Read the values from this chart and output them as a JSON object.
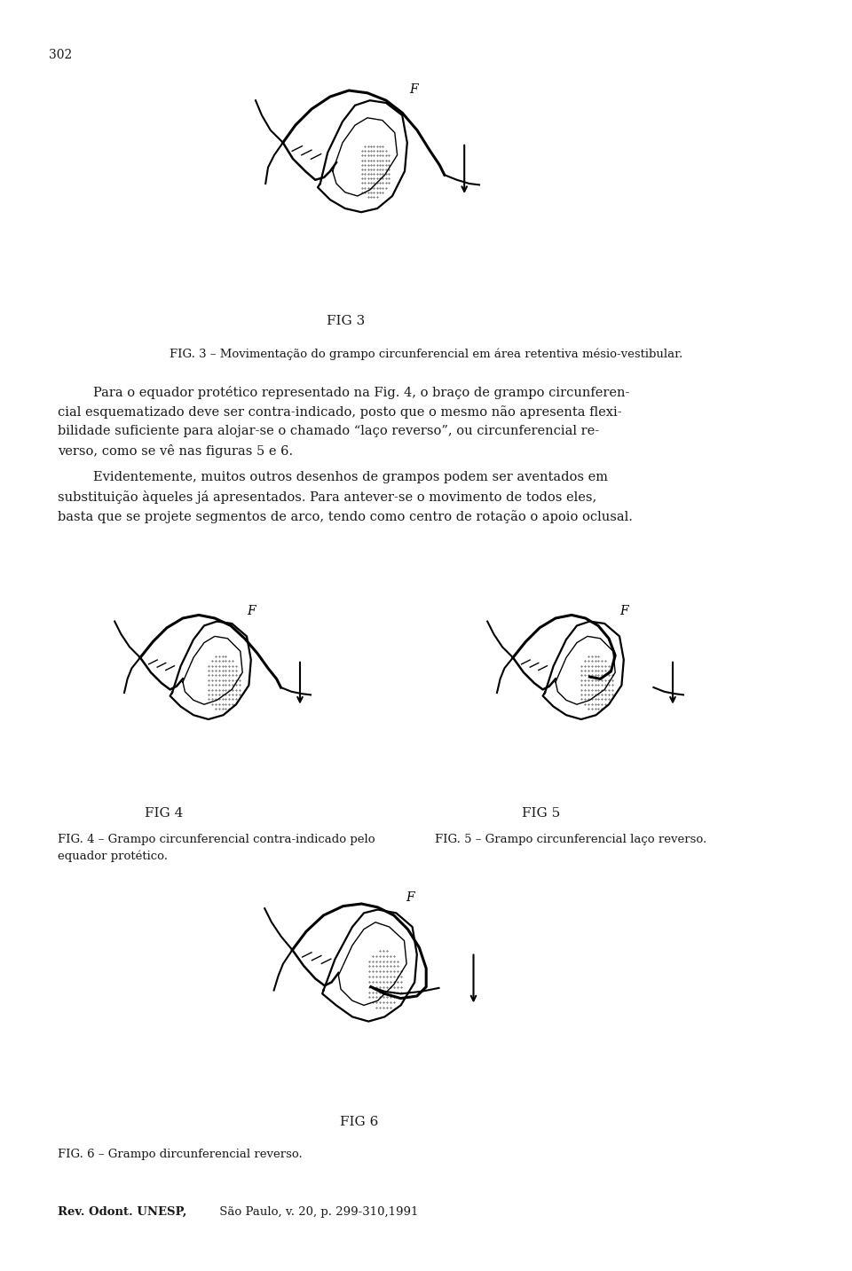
{
  "page_number": "302",
  "background_color": "#ffffff",
  "text_color": "#1a1a1a",
  "fig3_caption": "FIG. 3 – Movimentação do grampo circunferencial em área retentiva mésio-vestibular.",
  "paragraph1_lines": [
    "Para o equador protético representado na Fig. 4, o braço de grampo circunferen-",
    "cial esquematizado deve ser contra-indicado, posto que o mesmo não apresenta flexi-",
    "bilidade suficiente para alojar-se o chamado “laço reverso”, ou circunferencial re-",
    "verso, como se vê nas figuras 5 e 6."
  ],
  "paragraph2_lines": [
    "Evidentemente, muitos outros desenhos de grampos podem ser aventados em",
    "substituição àqueles já apresentados. Para antever-se o movimento de todos eles,",
    "basta que se projete segmentos de arco, tendo como centro de rotação o apoio oclusal."
  ],
  "fig4_label": "FIG 4",
  "fig5_label": "FIG 5",
  "fig4_caption_left": "FIG. 4 – Grampo circunferencial contra-indicado pelo",
  "fig4_caption_left2": "equador protético.",
  "fig5_caption_right": "FIG. 5 – Grampo circunferencial laço reverso.",
  "fig6_label": "FIG 6",
  "fig6_caption": "FIG. 6 – Grampo dircunferencial reverso.",
  "footer_bold": "Rev. Odont. UNESP,",
  "footer_normal": " São Paulo, v. 20, p. 299-310,1991",
  "fig3_label": "FIG 3"
}
